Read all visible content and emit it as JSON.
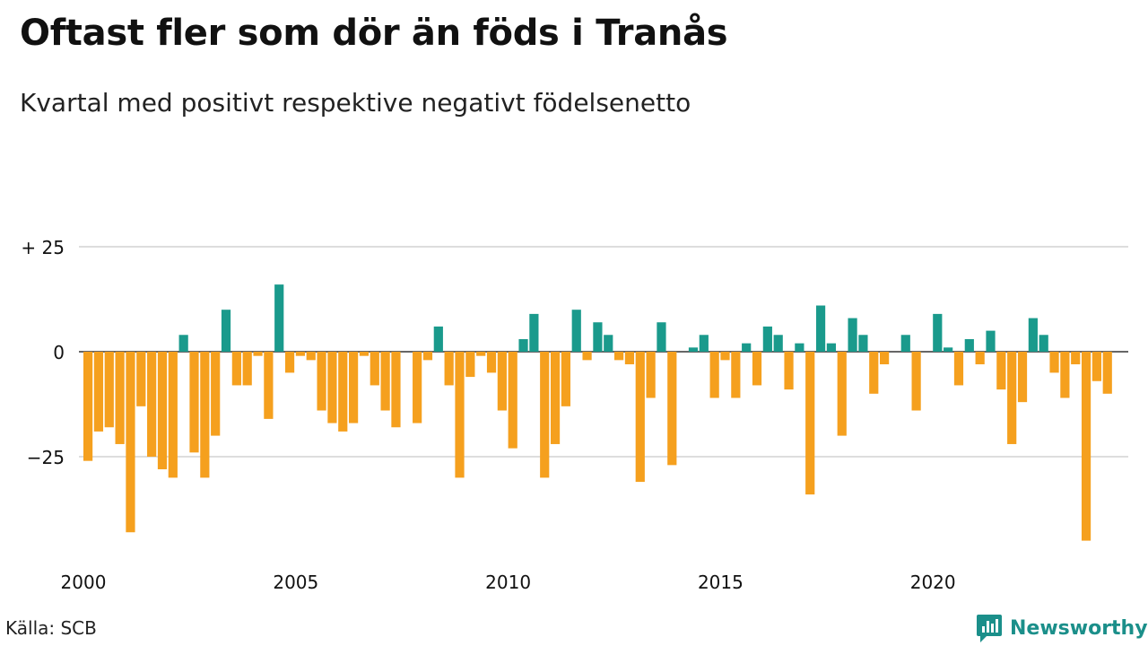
{
  "title": "Oftast fler som dör än föds i Tranås",
  "subtitle": "Kvartal med positivt respektive negativt födelsenetto",
  "source": "Källa: SCB",
  "brand": {
    "name": "Newsworthy",
    "icon": "bar-chart-logo-icon"
  },
  "colors": {
    "positive": "#1a9a8c",
    "negative": "#f5a01e",
    "grid": "#dddddd",
    "axis": "#333333"
  },
  "chart_data": {
    "type": "bar",
    "x_start": "2000 Q1",
    "frequency": "quarterly",
    "ylim": [
      -47,
      27
    ],
    "ytick_values": [
      25,
      0,
      -25
    ],
    "ytick_labels": [
      "+ 25",
      "0",
      "−25"
    ],
    "xtick_labels": [
      {
        "label": "2000",
        "year": 2000
      },
      {
        "label": "2005",
        "year": 2005
      },
      {
        "label": "2010",
        "year": 2010
      },
      {
        "label": "2015",
        "year": 2015
      },
      {
        "label": "2020",
        "year": 2020
      }
    ],
    "values": [
      -26,
      -19,
      -18,
      -22,
      -43,
      -13,
      -25,
      -28,
      -30,
      4,
      -24,
      -30,
      -20,
      10,
      -8,
      -8,
      -1,
      -16,
      16,
      -5,
      -1,
      -2,
      -14,
      -17,
      -19,
      -17,
      -1,
      -8,
      -14,
      -18,
      0,
      -17,
      -2,
      6,
      -8,
      -30,
      -6,
      -1,
      -5,
      -14,
      -23,
      3,
      9,
      -30,
      -22,
      -13,
      10,
      -2,
      7,
      4,
      -2,
      -3,
      -31,
      -11,
      7,
      -27,
      0,
      1,
      4,
      -11,
      -2,
      -11,
      2,
      -8,
      6,
      4,
      -9,
      2,
      -34,
      11,
      2,
      -20,
      8,
      4,
      -10,
      -3,
      0,
      4,
      -14,
      0,
      9,
      1,
      -8,
      3,
      -3,
      5,
      -9,
      -22,
      -12,
      8,
      4,
      -5,
      -11,
      -3,
      -45,
      -7,
      -10
    ]
  }
}
